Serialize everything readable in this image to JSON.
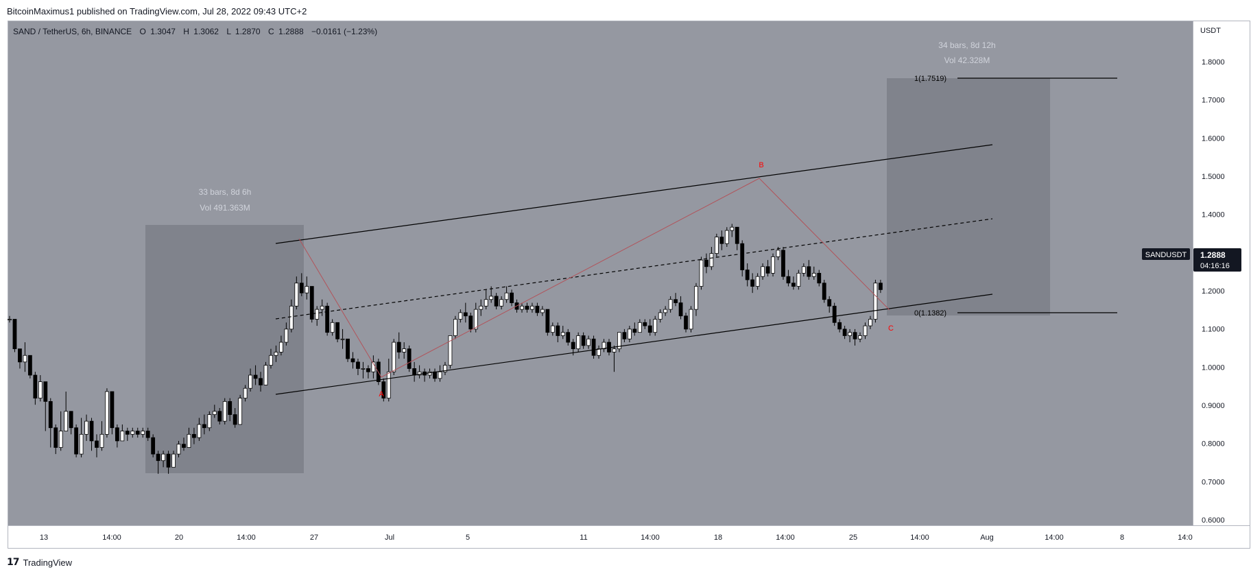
{
  "header": {
    "published": "BitcoinMaximus1 published on TradingView.com, Jul 28, 2022 09:43 UTC+2"
  },
  "legend": {
    "symbol": "SAND / TetherUS, 6h, BINANCE",
    "o_label": "O",
    "o_value": "1.3047",
    "h_label": "H",
    "h_value": "1.3062",
    "l_label": "L",
    "l_value": "1.2870",
    "c_label": "C",
    "c_value": "1.2888",
    "change": "−0.0161 (−1.23%)"
  },
  "price_axis": {
    "currency": "USDT",
    "ticks": [
      "1.8000",
      "1.7000",
      "1.6000",
      "1.5000",
      "1.4000",
      "1.3000",
      "1.2000",
      "1.1000",
      "1.0000",
      "0.9000",
      "0.8000",
      "0.7000",
      "0.6000"
    ]
  },
  "time_axis": {
    "ticks": [
      "13",
      "14:00",
      "20",
      "14:00",
      "27",
      "Jul",
      "5",
      "11",
      "14:00",
      "18",
      "14:00",
      "25",
      "14:00",
      "Aug",
      "14:00",
      "8",
      "14:0"
    ]
  },
  "price_label": {
    "symbol": "SANDUSDT",
    "price": "1.2888",
    "countdown": "04:16:16"
  },
  "ranges": [
    {
      "bars": "33 bars, 8d 6h",
      "vol": "Vol 491.363M"
    },
    {
      "bars": "34 bars, 8d 12h",
      "vol": "Vol 42.328M"
    }
  ],
  "fib": {
    "top_label": "1(1.7519)",
    "bottom_label": "0(1.1382)"
  },
  "waves": {
    "a": "A",
    "b": "B",
    "c": "C"
  },
  "footer": {
    "logo": "17",
    "brand": "TradingView"
  },
  "colors": {
    "chart_bg": "#9598a1",
    "range_box": "#80838c",
    "axis_bg": "#ffffff",
    "up_candle": "#ffffff",
    "down_candle": "#000000",
    "wick": "#000000",
    "wave_line": "#b2535a",
    "wave_label": "#ff0000",
    "channel": "#000000",
    "range_text": "#d1d4dc",
    "price_label_bg": "#131722"
  },
  "chart_data": {
    "type": "candlestick",
    "title": "SAND / TetherUS, 6h, BINANCE",
    "ylim": [
      0.6,
      1.85
    ],
    "grid": false,
    "series": [
      {
        "name": "SAND / TetherUS",
        "close": [
          1.21,
          1.12,
          1.08,
          1.1,
          1.04,
          0.97,
          1.02,
          0.96,
          0.88,
          0.82,
          0.87,
          0.93,
          0.88,
          0.8,
          0.86,
          0.9,
          0.84,
          0.82,
          0.86,
          0.99,
          0.88,
          0.84,
          0.87,
          0.86,
          0.87,
          0.86,
          0.87,
          0.85,
          0.8,
          0.78,
          0.8,
          0.76,
          0.8,
          0.83,
          0.82,
          0.86,
          0.85,
          0.89,
          0.88,
          0.92,
          0.93,
          0.9,
          0.96,
          0.92,
          0.89,
          0.97,
          1.0,
          1.04,
          1.03,
          1.01,
          1.07,
          1.1,
          1.11,
          1.14,
          1.18,
          1.25,
          1.32,
          1.29,
          1.31,
          1.21,
          1.24,
          1.25,
          1.17,
          1.2,
          1.15,
          1.15,
          1.09,
          1.08,
          1.06,
          1.06,
          1.05,
          1.08,
          1.02,
          0.97,
          1.05,
          1.14,
          1.11,
          1.12,
          1.06,
          1.04,
          1.05,
          1.04,
          1.05,
          1.03,
          1.05,
          1.07,
          1.16,
          1.21,
          1.23,
          1.22,
          1.18,
          1.24,
          1.25,
          1.27,
          1.28,
          1.25,
          1.27,
          1.29,
          1.26,
          1.24,
          1.25,
          1.24,
          1.25,
          1.23,
          1.24,
          1.17,
          1.19,
          1.16,
          1.17,
          1.14,
          1.12,
          1.16,
          1.13,
          1.15,
          1.1,
          1.12,
          1.14,
          1.11,
          1.12,
          1.17,
          1.15,
          1.18,
          1.17,
          1.2,
          1.19,
          1.17,
          1.21,
          1.23,
          1.24,
          1.27,
          1.26,
          1.22,
          1.18,
          1.24,
          1.31,
          1.39,
          1.37,
          1.41,
          1.46,
          1.44,
          1.48,
          1.49,
          1.44,
          1.36,
          1.33,
          1.31,
          1.34,
          1.37,
          1.35,
          1.4,
          1.42,
          1.34,
          1.32,
          1.31,
          1.35,
          1.37,
          1.34,
          1.35,
          1.32,
          1.27,
          1.25,
          1.2,
          1.18,
          1.16,
          1.17,
          1.15,
          1.16,
          1.19,
          1.21,
          1.32,
          1.3
        ],
        "high": [
          1.22,
          1.21,
          1.12,
          1.14,
          1.1,
          1.05,
          1.04,
          1.02,
          0.97,
          0.89,
          0.93,
          0.99,
          0.93,
          0.89,
          0.91,
          0.92,
          0.91,
          0.86,
          0.9,
          1.0,
          0.99,
          0.89,
          0.89,
          0.88,
          0.88,
          0.88,
          0.88,
          0.88,
          0.86,
          0.81,
          0.81,
          0.81,
          0.81,
          0.84,
          0.85,
          0.88,
          0.88,
          0.91,
          0.92,
          0.93,
          0.95,
          0.94,
          0.97,
          0.97,
          0.94,
          0.98,
          1.01,
          1.06,
          1.07,
          1.05,
          1.08,
          1.12,
          1.13,
          1.16,
          1.2,
          1.27,
          1.34,
          1.35,
          1.34,
          1.31,
          1.25,
          1.27,
          1.26,
          1.21,
          1.2,
          1.18,
          1.15,
          1.11,
          1.09,
          1.08,
          1.07,
          1.1,
          1.09,
          1.03,
          1.09,
          1.15,
          1.17,
          1.14,
          1.13,
          1.08,
          1.07,
          1.06,
          1.06,
          1.06,
          1.07,
          1.08,
          1.16,
          1.22,
          1.24,
          1.26,
          1.23,
          1.26,
          1.27,
          1.3,
          1.31,
          1.29,
          1.28,
          1.31,
          1.3,
          1.27,
          1.26,
          1.26,
          1.26,
          1.26,
          1.25,
          1.24,
          1.2,
          1.2,
          1.19,
          1.18,
          1.15,
          1.17,
          1.17,
          1.16,
          1.16,
          1.13,
          1.15,
          1.15,
          1.13,
          1.17,
          1.18,
          1.19,
          1.2,
          1.21,
          1.21,
          1.21,
          1.22,
          1.24,
          1.25,
          1.28,
          1.29,
          1.28,
          1.23,
          1.25,
          1.32,
          1.4,
          1.41,
          1.43,
          1.47,
          1.48,
          1.49,
          1.5,
          1.49,
          1.45,
          1.38,
          1.35,
          1.35,
          1.38,
          1.39,
          1.41,
          1.43,
          1.43,
          1.36,
          1.34,
          1.36,
          1.38,
          1.39,
          1.37,
          1.36,
          1.33,
          1.28,
          1.26,
          1.21,
          1.19,
          1.18,
          1.18,
          1.17,
          1.2,
          1.22,
          1.33,
          1.33
        ],
        "low": [
          1.2,
          1.11,
          1.06,
          1.05,
          1.03,
          0.95,
          0.96,
          0.87,
          0.82,
          0.8,
          0.81,
          0.87,
          0.86,
          0.79,
          0.79,
          0.84,
          0.81,
          0.79,
          0.81,
          0.85,
          0.86,
          0.82,
          0.84,
          0.84,
          0.85,
          0.85,
          0.85,
          0.84,
          0.79,
          0.74,
          0.76,
          0.74,
          0.76,
          0.79,
          0.81,
          0.82,
          0.83,
          0.84,
          0.86,
          0.87,
          0.91,
          0.89,
          0.89,
          0.9,
          0.88,
          0.89,
          0.96,
          0.99,
          1.01,
          0.99,
          1.01,
          1.06,
          1.08,
          1.1,
          1.13,
          1.17,
          1.24,
          1.28,
          1.27,
          1.2,
          1.19,
          1.22,
          1.16,
          1.16,
          1.14,
          1.12,
          1.08,
          1.06,
          1.04,
          1.03,
          1.03,
          1.03,
          1.01,
          0.96,
          0.96,
          1.04,
          1.09,
          1.09,
          1.05,
          1.02,
          1.03,
          1.02,
          1.03,
          1.02,
          1.02,
          1.04,
          1.06,
          1.15,
          1.2,
          1.2,
          1.17,
          1.17,
          1.22,
          1.24,
          1.26,
          1.24,
          1.24,
          1.26,
          1.25,
          1.23,
          1.23,
          1.23,
          1.23,
          1.22,
          1.22,
          1.16,
          1.16,
          1.14,
          1.15,
          1.13,
          1.1,
          1.11,
          1.12,
          1.12,
          1.09,
          1.09,
          1.11,
          1.1,
          1.05,
          1.11,
          1.14,
          1.14,
          1.16,
          1.17,
          1.18,
          1.16,
          1.16,
          1.2,
          1.22,
          1.23,
          1.25,
          1.21,
          1.17,
          1.17,
          1.22,
          1.3,
          1.35,
          1.36,
          1.4,
          1.42,
          1.43,
          1.46,
          1.42,
          1.34,
          1.31,
          1.29,
          1.3,
          1.33,
          1.34,
          1.34,
          1.39,
          1.33,
          1.31,
          1.3,
          1.3,
          1.34,
          1.33,
          1.33,
          1.31,
          1.26,
          1.23,
          1.19,
          1.17,
          1.15,
          1.14,
          1.13,
          1.14,
          1.15,
          1.18,
          1.2,
          1.29
        ]
      }
    ],
    "channel": {
      "lower": [
        [
          0.9255,
          1.187
        ]
      ],
      "upper": [
        [
          1.3221,
          1.5766
        ]
      ]
    },
    "waves": [
      {
        "label": "A",
        "price": 0.958
      },
      {
        "label": "B",
        "price": 1.496
      },
      {
        "label": "C",
        "price": 1.138
      }
    ],
    "fib_levels": [
      {
        "level": 1,
        "price": 1.7519
      },
      {
        "level": 0,
        "price": 1.1382
      }
    ],
    "last_price": 1.2888
  }
}
